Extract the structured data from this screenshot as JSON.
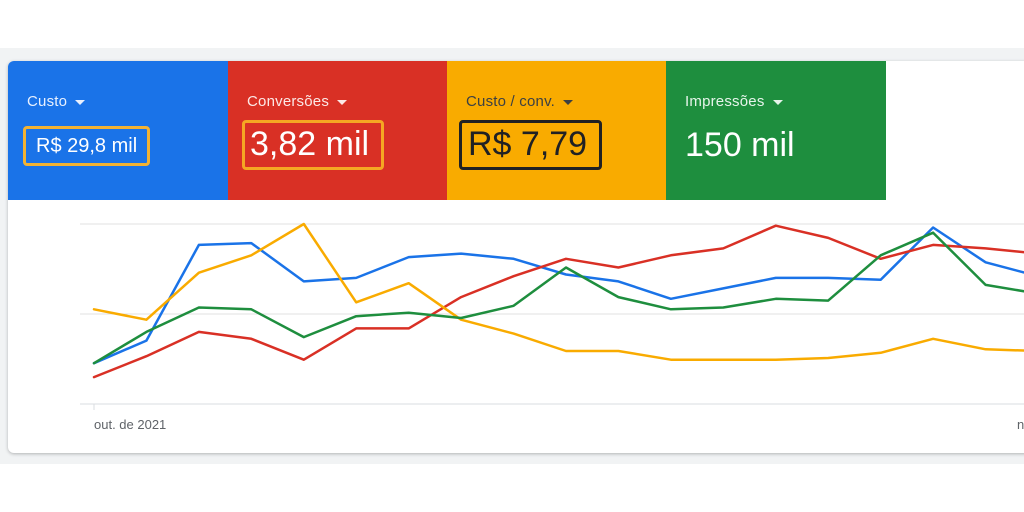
{
  "metrics": [
    {
      "label": "Custo",
      "value": "R$ 29,8 mil",
      "color": "#1a73e8",
      "label_color": "#e8f0fe"
    },
    {
      "label": "Conversões",
      "value": "3,82 mil",
      "color": "#d93025",
      "label_color": "#fce8e6"
    },
    {
      "label": "Custo / conv.",
      "value": "R$ 7,79",
      "color": "#f9ab00",
      "label_color": "#3c4043"
    },
    {
      "label": "Impressões",
      "value": "150 mil",
      "color": "#1e8e3e",
      "label_color": "#e6f4ea"
    }
  ],
  "chart_data": {
    "type": "line",
    "x_labels": [
      "out. de 2021",
      "n"
    ],
    "gridlines": 3,
    "legend": "none",
    "series": [
      {
        "metric": "Custo",
        "color": "#1a73e8",
        "values": [
          0.2,
          0.33,
          0.88,
          0.89,
          0.67,
          0.69,
          0.81,
          0.83,
          0.8,
          0.71,
          0.67,
          0.57,
          0.63,
          0.69,
          0.69,
          0.68,
          0.98,
          0.78,
          0.7
        ]
      },
      {
        "metric": "Conversões",
        "color": "#d93025",
        "values": [
          0.12,
          0.24,
          0.38,
          0.34,
          0.22,
          0.4,
          0.4,
          0.58,
          0.7,
          0.8,
          0.75,
          0.82,
          0.86,
          0.99,
          0.92,
          0.8,
          0.88,
          0.86,
          0.83
        ]
      },
      {
        "metric": "Custo / conv.",
        "color": "#f9ab00",
        "values": [
          0.51,
          0.45,
          0.72,
          0.82,
          1.0,
          0.55,
          0.66,
          0.45,
          0.37,
          0.27,
          0.27,
          0.22,
          0.22,
          0.22,
          0.23,
          0.26,
          0.34,
          0.28,
          0.27
        ]
      },
      {
        "metric": "Impressões",
        "color": "#1e8e3e",
        "values": [
          0.2,
          0.38,
          0.52,
          0.51,
          0.35,
          0.47,
          0.49,
          0.46,
          0.53,
          0.75,
          0.58,
          0.51,
          0.52,
          0.57,
          0.56,
          0.82,
          0.95,
          0.65,
          0.6
        ]
      }
    ]
  }
}
